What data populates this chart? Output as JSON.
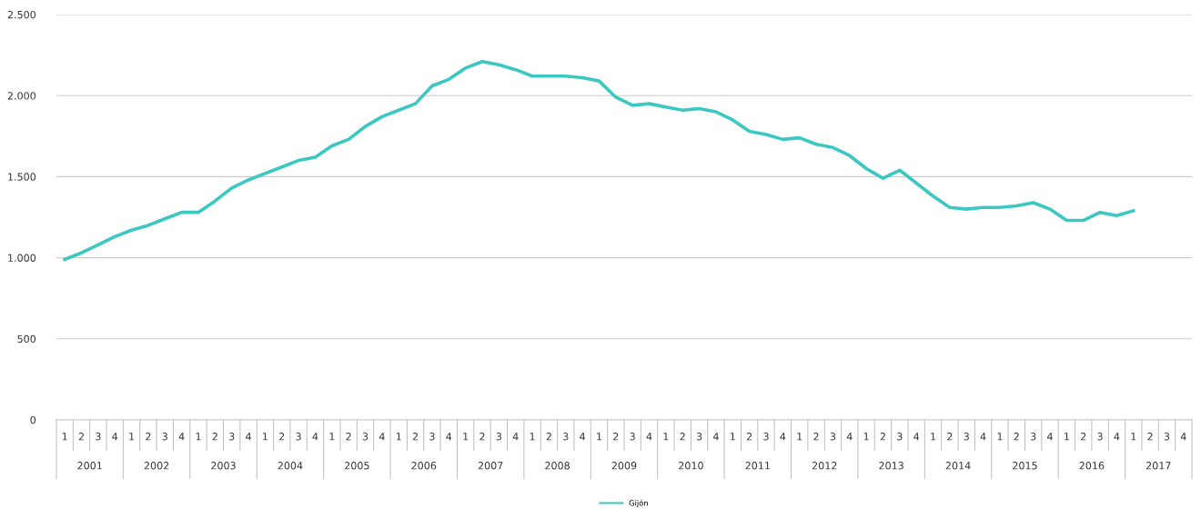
{
  "chart_data": {
    "type": "line",
    "categories": [
      "1",
      "2",
      "3",
      "4",
      "1",
      "2",
      "3",
      "4",
      "1",
      "2",
      "3",
      "4",
      "1",
      "2",
      "3",
      "4",
      "1",
      "2",
      "3",
      "4",
      "1",
      "2",
      "3",
      "4",
      "1",
      "2",
      "3",
      "4",
      "1",
      "2",
      "3",
      "4",
      "1",
      "2",
      "3",
      "4",
      "1",
      "2",
      "3",
      "4",
      "1",
      "2",
      "3",
      "4",
      "1",
      "2",
      "3",
      "4",
      "1",
      "2",
      "3",
      "4",
      "1",
      "2",
      "3",
      "4",
      "1",
      "2",
      "3",
      "4",
      "1",
      "2",
      "3",
      "4",
      "1",
      "2",
      "3",
      "4"
    ],
    "series": [
      {
        "name": "Gijón",
        "color": "#3cc8c2",
        "values": [
          990,
          1030,
          1080,
          1130,
          1170,
          1200,
          1240,
          1280,
          1280,
          1350,
          1430,
          1480,
          1520,
          1560,
          1600,
          1620,
          1690,
          1730,
          1810,
          1870,
          1910,
          1950,
          2060,
          2100,
          2170,
          2210,
          2190,
          2160,
          2120,
          2120,
          2120,
          2110,
          2090,
          1990,
          1940,
          1950,
          1930,
          1910,
          1920,
          1900,
          1850,
          1780,
          1760,
          1730,
          1740,
          1700,
          1680,
          1630,
          1550,
          1490,
          1540,
          1460,
          1380,
          1310,
          1300,
          1310,
          1310,
          1320,
          1340,
          1300,
          1230,
          1230,
          1280,
          1260,
          1290,
          null,
          null,
          null
        ]
      }
    ],
    "annotations": [
      "2001",
      "2002",
      "2003",
      "2004",
      "2005",
      "2006",
      "2007",
      "2008",
      "2009",
      "2010",
      "2011",
      "2012",
      "2013",
      "2014",
      "2015",
      "2016",
      "2017"
    ],
    "ylim": [
      0,
      2500
    ],
    "yticks": [
      0,
      500,
      {
        "value": 1000,
        "label": "1.000"
      },
      {
        "value": 1500,
        "label": "1.500"
      },
      {
        "value": 2000,
        "label": "2.000"
      },
      {
        "value": 2500,
        "label": "2.500"
      }
    ],
    "grid": "y",
    "legend": "bottom",
    "marker": "none",
    "line_style": "solid"
  }
}
